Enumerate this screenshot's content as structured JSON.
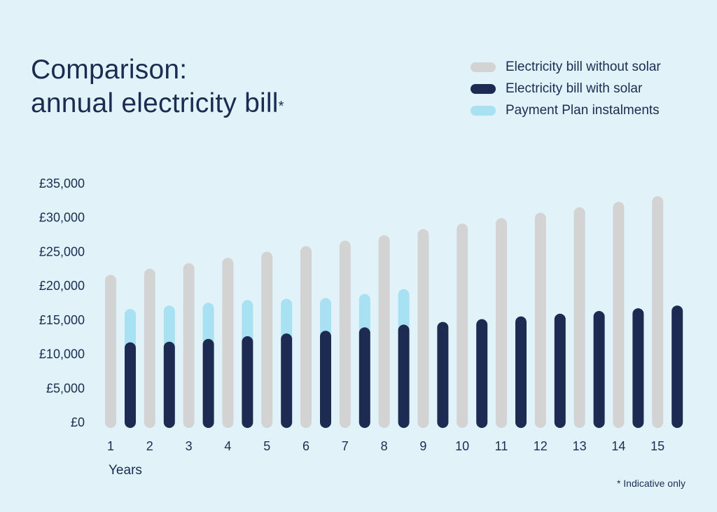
{
  "title_line1": "Comparison:",
  "title_line2": "annual electricity bill",
  "title_mark": "*",
  "footnote": "* Indicative only",
  "chart_data": {
    "type": "bar",
    "title": "Comparison: annual electricity bill*",
    "xlabel": "Years",
    "ylabel": "",
    "ylim": [
      0,
      35000
    ],
    "yticks": [
      0,
      5000,
      10000,
      15000,
      20000,
      25000,
      30000,
      35000
    ],
    "ytick_labels": [
      "£0",
      "£5,000",
      "£10,000",
      "£15,000",
      "£20,000",
      "£25,000",
      "£30,000",
      "£35,000"
    ],
    "categories": [
      "1",
      "2",
      "3",
      "4",
      "5",
      "6",
      "7",
      "8",
      "9",
      "10",
      "11",
      "12",
      "13",
      "14",
      "15"
    ],
    "legend_position": "top-right",
    "grid": false,
    "series": [
      {
        "name": "Electricity bill without solar",
        "color": "#d3d3d3",
        "values": [
          20800,
          21700,
          22500,
          23300,
          24200,
          25000,
          25800,
          26600,
          27500,
          28300,
          29100,
          29900,
          30700,
          31500,
          32300
        ]
      },
      {
        "name": "Electricity bill with solar",
        "color": "#1d2b52",
        "values": [
          10900,
          11000,
          11400,
          11800,
          12200,
          12600,
          13100,
          13500,
          13900,
          14300,
          14700,
          15100,
          15500,
          15900,
          16300
        ]
      },
      {
        "name": "Payment Plan instalments",
        "color": "#a8e1f1",
        "stacked_on": "Electricity bill with solar",
        "values": [
          4900,
          5300,
          5300,
          5300,
          5100,
          4800,
          4900,
          5200,
          0,
          0,
          0,
          0,
          0,
          0,
          0
        ]
      }
    ]
  }
}
